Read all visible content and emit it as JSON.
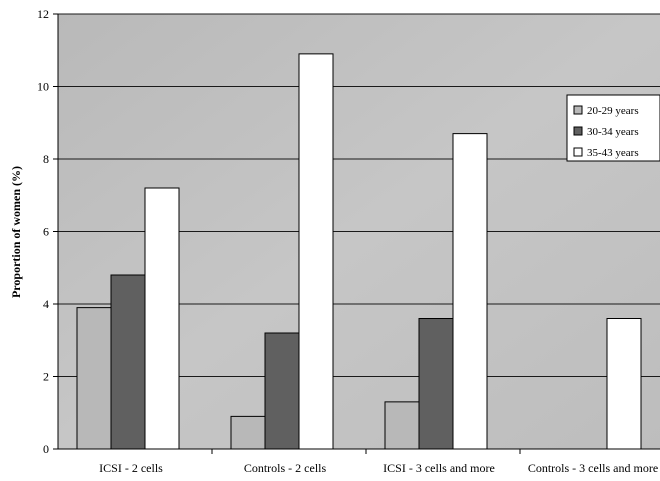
{
  "chart_data": {
    "type": "bar",
    "title": "",
    "xlabel": "",
    "ylabel": "Proportion of women (%)",
    "ylim": [
      0,
      12
    ],
    "yticks": [
      0,
      2,
      4,
      6,
      8,
      10,
      12
    ],
    "grid": true,
    "legend_position": "right",
    "categories": [
      "ICSI - 2 cells",
      "Controls - 2 cells",
      "ICSI - 3 cells and more",
      "Controls - 3 cells and more"
    ],
    "series": [
      {
        "name": "20-29 years",
        "color": "#b8b8b8",
        "values": [
          3.9,
          0.9,
          1.3,
          0
        ]
      },
      {
        "name": "30-34 years",
        "color": "#606060",
        "values": [
          4.8,
          3.2,
          3.6,
          0
        ]
      },
      {
        "name": "35-43 years",
        "color": "#ffffff",
        "values": [
          7.2,
          10.9,
          8.7,
          3.6
        ]
      }
    ]
  }
}
